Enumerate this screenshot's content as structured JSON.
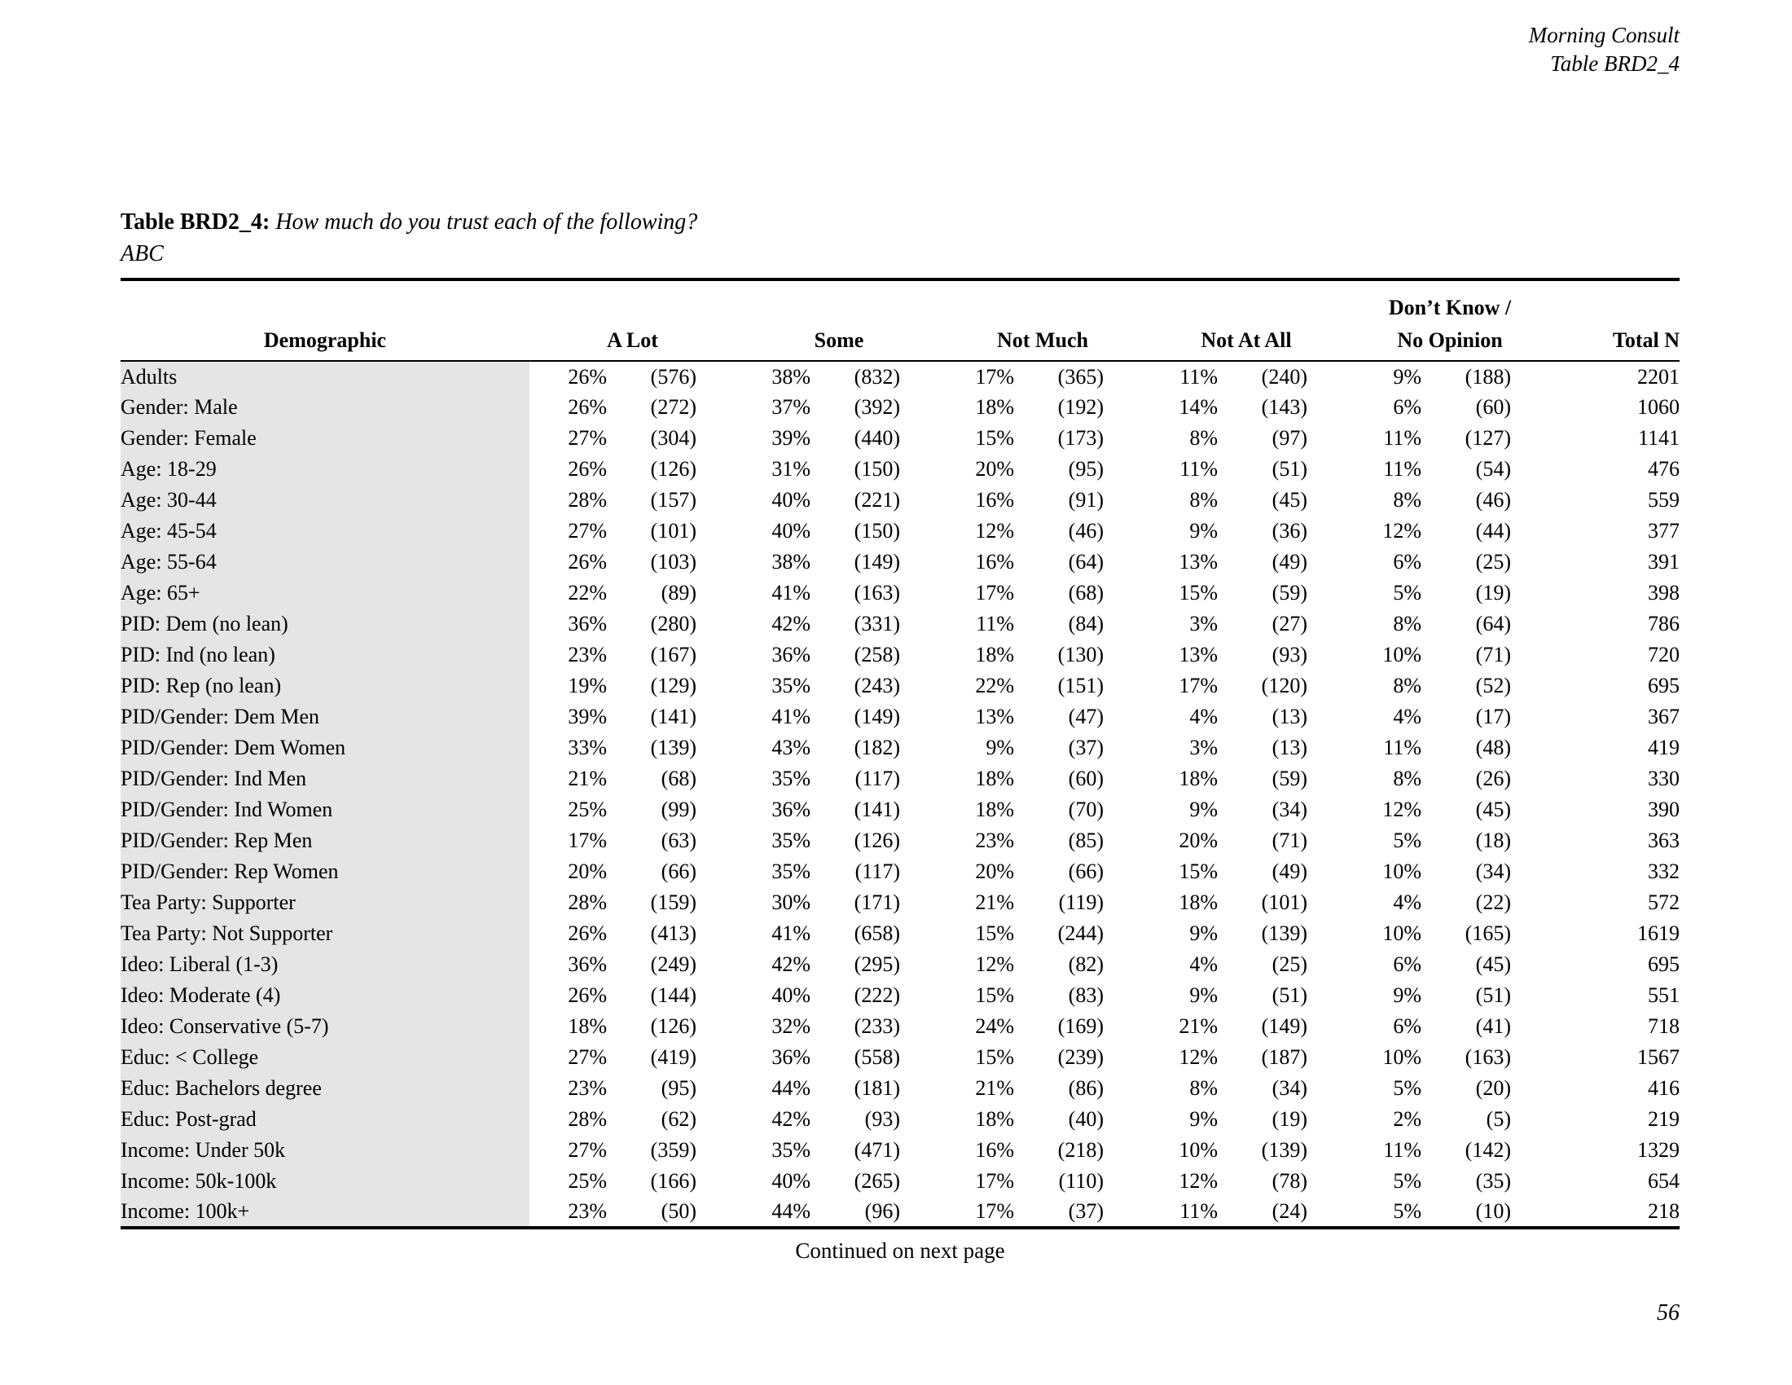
{
  "page_header": {
    "brand": "Morning Consult",
    "table_ref": "Table BRD2_4"
  },
  "title": {
    "prefix": "Table BRD2_4:",
    "question": "How much do you trust each of the following?",
    "subject": "ABC"
  },
  "table": {
    "headers": {
      "demographic": "Demographic",
      "a_lot": "A Lot",
      "some": "Some",
      "not_much": "Not Much",
      "not_at_all": "Not At All",
      "dk_line1": "Don’t Know /",
      "dk_line2": "No Opinion",
      "total": "Total N"
    },
    "rows": [
      {
        "cells": [
          "Adults",
          "26%",
          "(576)",
          "38%",
          "(832)",
          "17%",
          "(365)",
          "11%",
          "(240)",
          "9%",
          "(188)",
          "2201"
        ]
      },
      {
        "cells": [
          "Gender: Male",
          "26%",
          "(272)",
          "37%",
          "(392)",
          "18%",
          "(192)",
          "14%",
          "(143)",
          "6%",
          "(60)",
          "1060"
        ]
      },
      {
        "cells": [
          "Gender: Female",
          "27%",
          "(304)",
          "39%",
          "(440)",
          "15%",
          "(173)",
          "8%",
          "(97)",
          "11%",
          "(127)",
          "1141"
        ]
      },
      {
        "cells": [
          "Age: 18-29",
          "26%",
          "(126)",
          "31%",
          "(150)",
          "20%",
          "(95)",
          "11%",
          "(51)",
          "11%",
          "(54)",
          "476"
        ]
      },
      {
        "cells": [
          "Age: 30-44",
          "28%",
          "(157)",
          "40%",
          "(221)",
          "16%",
          "(91)",
          "8%",
          "(45)",
          "8%",
          "(46)",
          "559"
        ]
      },
      {
        "cells": [
          "Age: 45-54",
          "27%",
          "(101)",
          "40%",
          "(150)",
          "12%",
          "(46)",
          "9%",
          "(36)",
          "12%",
          "(44)",
          "377"
        ]
      },
      {
        "cells": [
          "Age: 55-64",
          "26%",
          "(103)",
          "38%",
          "(149)",
          "16%",
          "(64)",
          "13%",
          "(49)",
          "6%",
          "(25)",
          "391"
        ]
      },
      {
        "cells": [
          "Age: 65+",
          "22%",
          "(89)",
          "41%",
          "(163)",
          "17%",
          "(68)",
          "15%",
          "(59)",
          "5%",
          "(19)",
          "398"
        ]
      },
      {
        "cells": [
          "PID: Dem (no lean)",
          "36%",
          "(280)",
          "42%",
          "(331)",
          "11%",
          "(84)",
          "3%",
          "(27)",
          "8%",
          "(64)",
          "786"
        ]
      },
      {
        "cells": [
          "PID: Ind (no lean)",
          "23%",
          "(167)",
          "36%",
          "(258)",
          "18%",
          "(130)",
          "13%",
          "(93)",
          "10%",
          "(71)",
          "720"
        ]
      },
      {
        "cells": [
          "PID: Rep (no lean)",
          "19%",
          "(129)",
          "35%",
          "(243)",
          "22%",
          "(151)",
          "17%",
          "(120)",
          "8%",
          "(52)",
          "695"
        ]
      },
      {
        "cells": [
          "PID/Gender: Dem Men",
          "39%",
          "(141)",
          "41%",
          "(149)",
          "13%",
          "(47)",
          "4%",
          "(13)",
          "4%",
          "(17)",
          "367"
        ]
      },
      {
        "cells": [
          "PID/Gender: Dem Women",
          "33%",
          "(139)",
          "43%",
          "(182)",
          "9%",
          "(37)",
          "3%",
          "(13)",
          "11%",
          "(48)",
          "419"
        ]
      },
      {
        "cells": [
          "PID/Gender: Ind Men",
          "21%",
          "(68)",
          "35%",
          "(117)",
          "18%",
          "(60)",
          "18%",
          "(59)",
          "8%",
          "(26)",
          "330"
        ]
      },
      {
        "cells": [
          "PID/Gender: Ind Women",
          "25%",
          "(99)",
          "36%",
          "(141)",
          "18%",
          "(70)",
          "9%",
          "(34)",
          "12%",
          "(45)",
          "390"
        ]
      },
      {
        "cells": [
          "PID/Gender: Rep Men",
          "17%",
          "(63)",
          "35%",
          "(126)",
          "23%",
          "(85)",
          "20%",
          "(71)",
          "5%",
          "(18)",
          "363"
        ]
      },
      {
        "cells": [
          "PID/Gender: Rep Women",
          "20%",
          "(66)",
          "35%",
          "(117)",
          "20%",
          "(66)",
          "15%",
          "(49)",
          "10%",
          "(34)",
          "332"
        ]
      },
      {
        "cells": [
          "Tea Party: Supporter",
          "28%",
          "(159)",
          "30%",
          "(171)",
          "21%",
          "(119)",
          "18%",
          "(101)",
          "4%",
          "(22)",
          "572"
        ]
      },
      {
        "cells": [
          "Tea Party: Not Supporter",
          "26%",
          "(413)",
          "41%",
          "(658)",
          "15%",
          "(244)",
          "9%",
          "(139)",
          "10%",
          "(165)",
          "1619"
        ]
      },
      {
        "cells": [
          "Ideo: Liberal (1-3)",
          "36%",
          "(249)",
          "42%",
          "(295)",
          "12%",
          "(82)",
          "4%",
          "(25)",
          "6%",
          "(45)",
          "695"
        ]
      },
      {
        "cells": [
          "Ideo: Moderate (4)",
          "26%",
          "(144)",
          "40%",
          "(222)",
          "15%",
          "(83)",
          "9%",
          "(51)",
          "9%",
          "(51)",
          "551"
        ]
      },
      {
        "cells": [
          "Ideo: Conservative (5-7)",
          "18%",
          "(126)",
          "32%",
          "(233)",
          "24%",
          "(169)",
          "21%",
          "(149)",
          "6%",
          "(41)",
          "718"
        ]
      },
      {
        "cells": [
          "Educ: < College",
          "27%",
          "(419)",
          "36%",
          "(558)",
          "15%",
          "(239)",
          "12%",
          "(187)",
          "10%",
          "(163)",
          "1567"
        ]
      },
      {
        "cells": [
          "Educ: Bachelors degree",
          "23%",
          "(95)",
          "44%",
          "(181)",
          "21%",
          "(86)",
          "8%",
          "(34)",
          "5%",
          "(20)",
          "416"
        ]
      },
      {
        "cells": [
          "Educ: Post-grad",
          "28%",
          "(62)",
          "42%",
          "(93)",
          "18%",
          "(40)",
          "9%",
          "(19)",
          "2%",
          "(5)",
          "219"
        ]
      },
      {
        "cells": [
          "Income: Under 50k",
          "27%",
          "(359)",
          "35%",
          "(471)",
          "16%",
          "(218)",
          "10%",
          "(139)",
          "11%",
          "(142)",
          "1329"
        ]
      },
      {
        "cells": [
          "Income: 50k-100k",
          "25%",
          "(166)",
          "40%",
          "(265)",
          "17%",
          "(110)",
          "12%",
          "(78)",
          "5%",
          "(35)",
          "654"
        ]
      },
      {
        "cells": [
          "Income: 100k+",
          "23%",
          "(50)",
          "44%",
          "(96)",
          "17%",
          "(37)",
          "11%",
          "(24)",
          "5%",
          "(10)",
          "218"
        ]
      }
    ]
  },
  "footer": {
    "continued": "Continued on next page",
    "page_number": "56"
  }
}
